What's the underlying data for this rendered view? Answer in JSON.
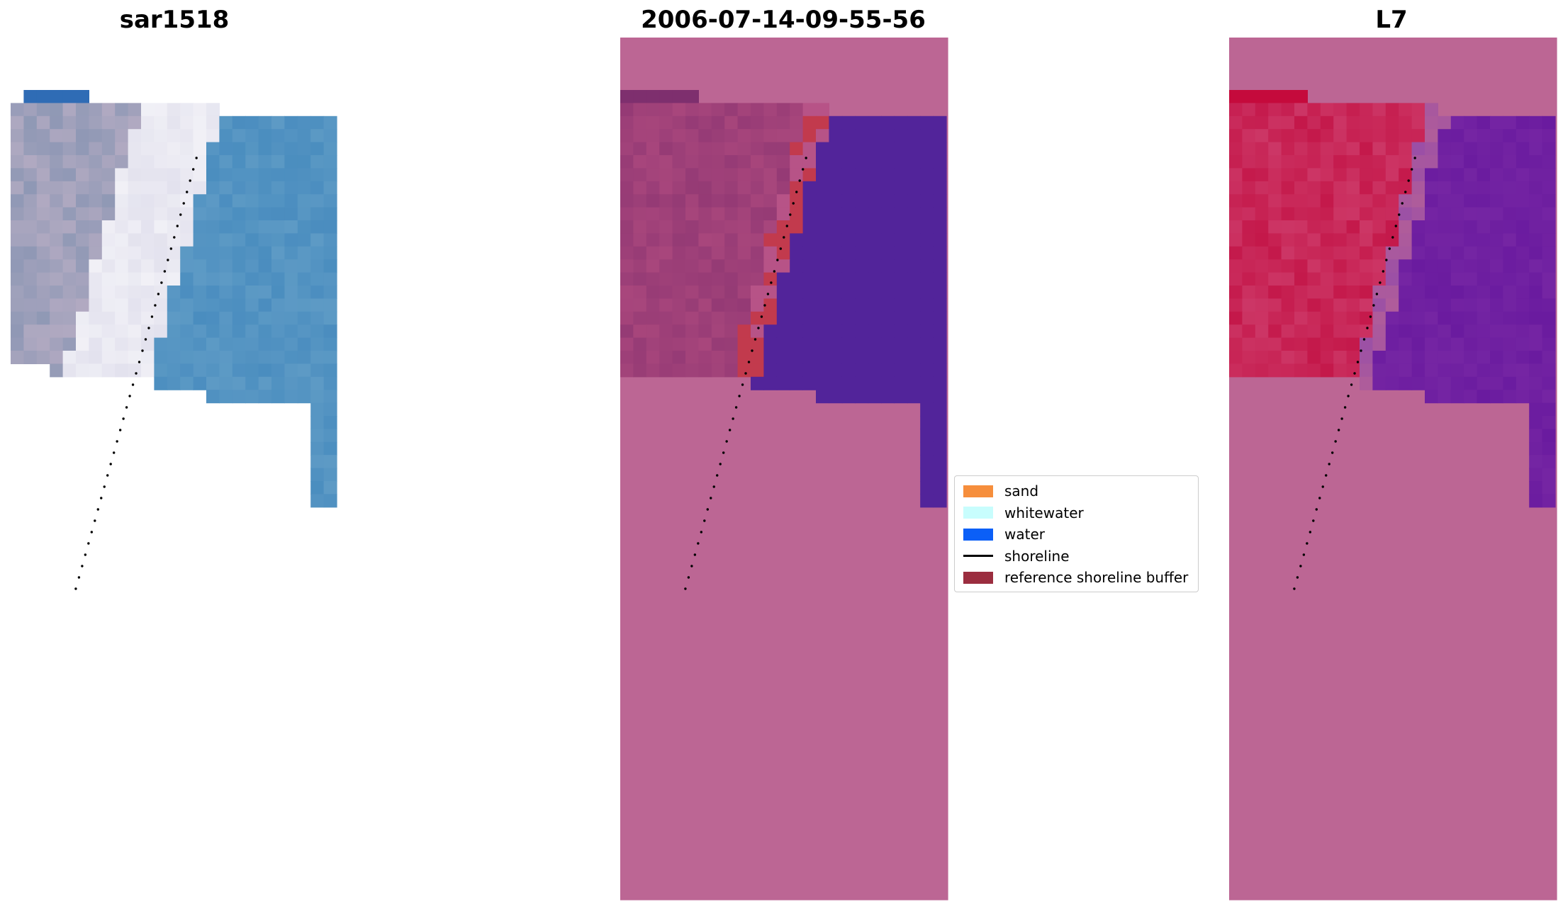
{
  "panels": [
    {
      "title": "sar1518"
    },
    {
      "title": "2006-07-14-09-55-56"
    },
    {
      "title": "L7"
    }
  ],
  "legend": {
    "items": [
      {
        "label": "sand",
        "color": "#f68e3c",
        "kind": "patch"
      },
      {
        "label": "whitewater",
        "color": "#c8fdfd",
        "kind": "patch"
      },
      {
        "label": "water",
        "color": "#0b5ff7",
        "kind": "patch"
      },
      {
        "label": "shoreline",
        "color": "#000000",
        "kind": "line"
      },
      {
        "label": "reference shoreline buffer",
        "color": "#9b2d3f",
        "kind": "patch"
      }
    ]
  },
  "colors": {
    "background_mask": "#bc6694",
    "rgb_sand": "#8f98b5",
    "rgb_beach": "#e3e2ee",
    "rgb_water": "#4a8dbf",
    "class_land": "#a8467c",
    "class_water": "#52249a",
    "class_buffer": "#c23a4d",
    "ndwi_land": "#c4184a",
    "ndwi_water": "#6a1b9f",
    "shoreline": "#000000"
  }
}
